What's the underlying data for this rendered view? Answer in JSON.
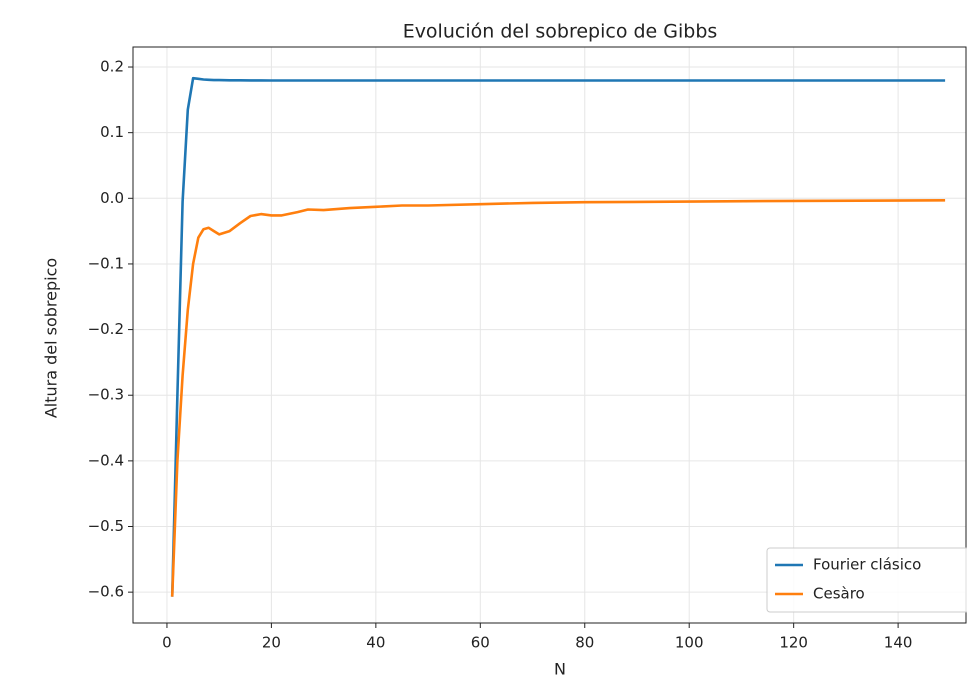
{
  "chart_data": {
    "type": "line",
    "title": "Evolución del sobrepico de Gibbs",
    "xlabel": "N",
    "ylabel": "Altura del sobrepico",
    "x": [
      1,
      2,
      3,
      4,
      5,
      6,
      7,
      8,
      9,
      10,
      12,
      14,
      16,
      18,
      20,
      22,
      25,
      27,
      30,
      35,
      40,
      45,
      50,
      60,
      70,
      80,
      100,
      120,
      149
    ],
    "series": [
      {
        "name": "Fourier clásico",
        "color": "#1f77b4",
        "values": [
          -0.607,
          -0.3,
          -0.005,
          0.135,
          0.183,
          0.182,
          0.181,
          0.1805,
          0.18,
          0.18,
          0.1798,
          0.1797,
          0.1796,
          0.1796,
          0.1795,
          0.1795,
          0.1795,
          0.1795,
          0.1795,
          0.1795,
          0.1795,
          0.1795,
          0.1795,
          0.1795,
          0.1795,
          0.1795,
          0.1795,
          0.1795,
          0.1795
        ]
      },
      {
        "name": "Cesàro",
        "color": "#ff7f0e",
        "values": [
          -0.607,
          -0.4,
          -0.27,
          -0.17,
          -0.1,
          -0.06,
          -0.047,
          -0.045,
          -0.05,
          -0.055,
          -0.05,
          -0.038,
          -0.027,
          -0.024,
          -0.026,
          -0.026,
          -0.021,
          -0.017,
          -0.018,
          -0.015,
          -0.013,
          -0.011,
          -0.011,
          -0.009,
          -0.007,
          -0.006,
          -0.005,
          -0.004,
          -0.003
        ]
      }
    ],
    "xlim": [
      -6.5,
      153
    ],
    "ylim": [
      -0.647,
      0.2305
    ],
    "xticks": [
      0,
      20,
      40,
      60,
      80,
      100,
      120,
      140
    ],
    "yticks": [
      {
        "value": -0.6,
        "label": "−0.6"
      },
      {
        "value": -0.5,
        "label": "−0.5"
      },
      {
        "value": -0.4,
        "label": "−0.4"
      },
      {
        "value": -0.3,
        "label": "−0.3"
      },
      {
        "value": -0.2,
        "label": "−0.2"
      },
      {
        "value": -0.1,
        "label": "−0.1"
      },
      {
        "value": 0.0,
        "label": "0.0"
      },
      0.1,
      0.2
    ],
    "grid": true,
    "legend": "lower right"
  }
}
